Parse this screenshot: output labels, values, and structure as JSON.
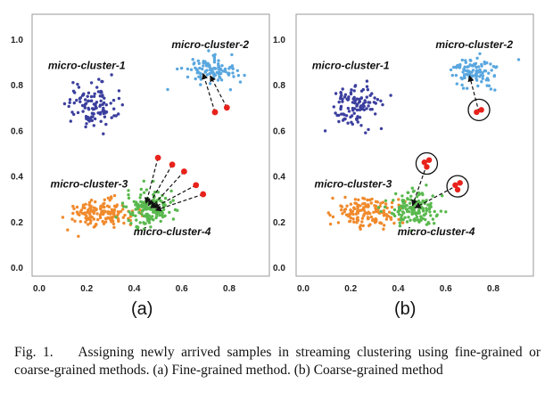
{
  "chart_data": [
    {
      "type": "scatter",
      "panel_label": "(a)",
      "xlim": [
        0.0,
        0.9
      ],
      "ylim": [
        0.0,
        1.0
      ],
      "x_ticks": [
        "0.0",
        "0.2",
        "0.4",
        "0.6",
        "0.8"
      ],
      "y_ticks": [
        "0.0",
        "0.2",
        "0.4",
        "0.6",
        "0.8",
        "1.0"
      ],
      "grid": false,
      "series": [
        {
          "name": "micro-cluster-1",
          "color": "#3b3f9e",
          "center": [
            0.22,
            0.71
          ],
          "spread": [
            0.05,
            0.05
          ],
          "count": 110
        },
        {
          "name": "micro-cluster-2",
          "color": "#5aa7df",
          "center": [
            0.72,
            0.86
          ],
          "spread": [
            0.055,
            0.03
          ],
          "count": 100
        },
        {
          "name": "micro-cluster-3",
          "color": "#f08a2c",
          "center": [
            0.27,
            0.24
          ],
          "spread": [
            0.07,
            0.03
          ],
          "count": 150
        },
        {
          "name": "micro-cluster-4",
          "color": "#59b94e",
          "center": [
            0.46,
            0.26
          ],
          "spread": [
            0.05,
            0.04
          ],
          "count": 150
        }
      ],
      "new_samples": [
        {
          "x": 0.74,
          "y": 0.68
        },
        {
          "x": 0.79,
          "y": 0.7
        },
        {
          "x": 0.5,
          "y": 0.48
        },
        {
          "x": 0.56,
          "y": 0.45
        },
        {
          "x": 0.61,
          "y": 0.42
        },
        {
          "x": 0.66,
          "y": 0.36
        },
        {
          "x": 0.69,
          "y": 0.32
        }
      ],
      "arrows": [
        {
          "from": [
            0.74,
            0.68
          ],
          "to": [
            0.69,
            0.85
          ]
        },
        {
          "from": [
            0.79,
            0.7
          ],
          "to": [
            0.72,
            0.84
          ]
        },
        {
          "from": [
            0.5,
            0.48
          ],
          "to": [
            0.45,
            0.28
          ]
        },
        {
          "from": [
            0.56,
            0.45
          ],
          "to": [
            0.46,
            0.27
          ]
        },
        {
          "from": [
            0.61,
            0.42
          ],
          "to": [
            0.47,
            0.26
          ]
        },
        {
          "from": [
            0.66,
            0.36
          ],
          "to": [
            0.48,
            0.26
          ]
        },
        {
          "from": [
            0.69,
            0.32
          ],
          "to": [
            0.49,
            0.25
          ]
        }
      ],
      "labels": [
        {
          "text": "micro-cluster-1",
          "x": 0.2,
          "y": 0.87
        },
        {
          "text": "micro-cluster-2",
          "x": 0.72,
          "y": 0.96
        },
        {
          "text": "micro-cluster-3",
          "x": 0.21,
          "y": 0.35
        },
        {
          "text": "micro-cluster-4",
          "x": 0.56,
          "y": 0.14
        }
      ],
      "groups": []
    },
    {
      "type": "scatter",
      "panel_label": "(b)",
      "xlim": [
        0.0,
        0.9
      ],
      "ylim": [
        0.0,
        1.0
      ],
      "x_ticks": [
        "0.0",
        "0.2",
        "0.4",
        "0.6",
        "0.8"
      ],
      "y_ticks": [
        "0.0",
        "0.2",
        "0.4",
        "0.6",
        "0.8",
        "1.0"
      ],
      "grid": false,
      "series": [
        {
          "name": "micro-cluster-1",
          "color": "#3b3f9e",
          "center": [
            0.22,
            0.71
          ],
          "spread": [
            0.05,
            0.05
          ],
          "count": 110
        },
        {
          "name": "micro-cluster-2",
          "color": "#5aa7df",
          "center": [
            0.72,
            0.86
          ],
          "spread": [
            0.055,
            0.03
          ],
          "count": 100
        },
        {
          "name": "micro-cluster-3",
          "color": "#f08a2c",
          "center": [
            0.27,
            0.24
          ],
          "spread": [
            0.07,
            0.03
          ],
          "count": 150
        },
        {
          "name": "micro-cluster-4",
          "color": "#59b94e",
          "center": [
            0.46,
            0.26
          ],
          "spread": [
            0.05,
            0.04
          ],
          "count": 150
        }
      ],
      "new_samples": [
        {
          "x": 0.73,
          "y": 0.68
        },
        {
          "x": 0.75,
          "y": 0.69
        },
        {
          "x": 0.51,
          "y": 0.46
        },
        {
          "x": 0.53,
          "y": 0.47
        },
        {
          "x": 0.52,
          "y": 0.44
        },
        {
          "x": 0.64,
          "y": 0.36
        },
        {
          "x": 0.66,
          "y": 0.37
        },
        {
          "x": 0.65,
          "y": 0.34
        }
      ],
      "arrows": [
        {
          "from": [
            0.74,
            0.68
          ],
          "to": [
            0.7,
            0.84
          ]
        },
        {
          "from": [
            0.52,
            0.45
          ],
          "to": [
            0.46,
            0.27
          ]
        },
        {
          "from": [
            0.65,
            0.36
          ],
          "to": [
            0.47,
            0.26
          ]
        }
      ],
      "labels": [
        {
          "text": "micro-cluster-1",
          "x": 0.2,
          "y": 0.87
        },
        {
          "text": "micro-cluster-2",
          "x": 0.72,
          "y": 0.96
        },
        {
          "text": "micro-cluster-3",
          "x": 0.21,
          "y": 0.35
        },
        {
          "text": "micro-cluster-4",
          "x": 0.56,
          "y": 0.14
        }
      ],
      "groups": [
        {
          "cx": 0.74,
          "cy": 0.69
        },
        {
          "cx": 0.52,
          "cy": 0.455
        },
        {
          "cx": 0.65,
          "cy": 0.355
        }
      ]
    }
  ],
  "panel_labels": [
    "(a)",
    "(b)"
  ],
  "caption": {
    "prefix": "Fig. 1.",
    "text": "Assigning newly arrived samples in streaming clustering using fine-grained or coarse-grained methods. (a) Fine-grained method. (b) Coarse-grained method"
  },
  "colors": {
    "new_sample": "#e8221b",
    "arrow": "#111111"
  }
}
